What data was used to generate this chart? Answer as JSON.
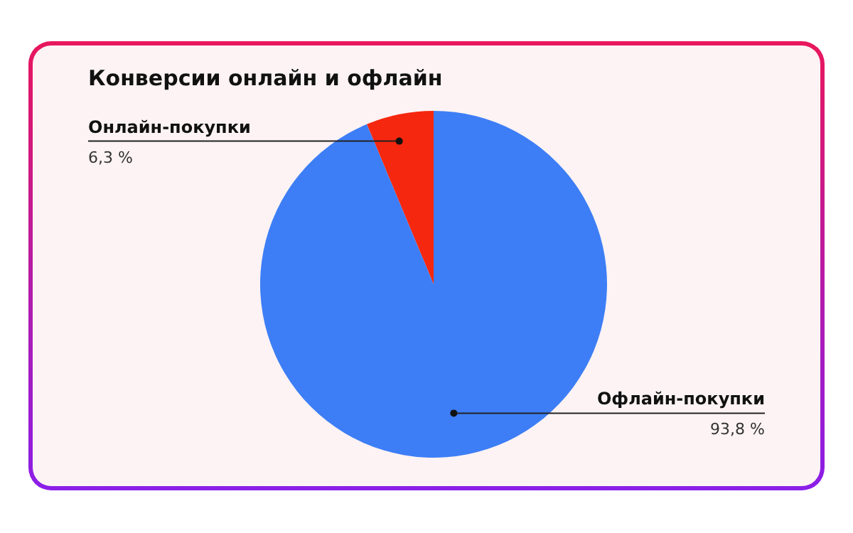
{
  "chart_data": {
    "type": "pie",
    "title": "Конверсии онлайн и офлайн",
    "categories": [
      "Онлайн-покупки",
      "Офлайн-покупки"
    ],
    "values": [
      6.3,
      93.8
    ],
    "value_labels": [
      "6,3 %",
      "93,8 %"
    ],
    "colors": [
      "#f5270f",
      "#3d7ef6"
    ],
    "legend": false
  }
}
